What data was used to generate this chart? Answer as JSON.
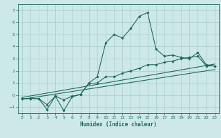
{
  "xlabel": "Humidex (Indice chaleur)",
  "ylabel": "",
  "background_color": "#cde8e8",
  "grid_color": "#aacccc",
  "line_color": "#1a6b5a",
  "xlim": [
    -0.5,
    23.5
  ],
  "ylim": [
    -1.5,
    7.5
  ],
  "xticks": [
    0,
    1,
    2,
    3,
    4,
    5,
    6,
    7,
    8,
    9,
    10,
    11,
    12,
    13,
    14,
    15,
    16,
    17,
    18,
    19,
    20,
    21,
    22,
    23
  ],
  "yticks": [
    -1,
    0,
    1,
    2,
    3,
    4,
    5,
    6,
    7
  ],
  "series1_x": [
    0,
    1,
    2,
    3,
    4,
    5,
    6,
    7,
    8,
    9,
    10,
    11,
    12,
    13,
    14,
    15,
    16,
    17,
    18,
    19,
    20,
    21,
    22,
    23
  ],
  "series1_y": [
    -0.3,
    -0.3,
    -0.3,
    -1.2,
    -0.1,
    -0.4,
    -0.1,
    0.05,
    0.95,
    1.0,
    1.5,
    1.5,
    1.8,
    2.0,
    2.2,
    2.5,
    2.5,
    2.7,
    2.8,
    3.0,
    3.1,
    3.2,
    2.4,
    2.4
  ],
  "series2_x": [
    0,
    1,
    2,
    3,
    4,
    5,
    6,
    7,
    8,
    9,
    10,
    11,
    12,
    13,
    14,
    15,
    16,
    17,
    18,
    19,
    20,
    21,
    22,
    23
  ],
  "series2_y": [
    -0.3,
    -0.3,
    -0.3,
    -0.8,
    -0.1,
    -1.3,
    -0.15,
    0.05,
    1.0,
    1.5,
    4.3,
    5.0,
    4.7,
    5.5,
    6.5,
    6.8,
    3.8,
    3.2,
    3.3,
    3.1,
    3.0,
    3.5,
    2.5,
    2.4
  ],
  "series3_x": [
    0,
    23
  ],
  "series3_y": [
    -0.35,
    2.1
  ],
  "series4_x": [
    0,
    23
  ],
  "series4_y": [
    -0.2,
    2.55
  ]
}
